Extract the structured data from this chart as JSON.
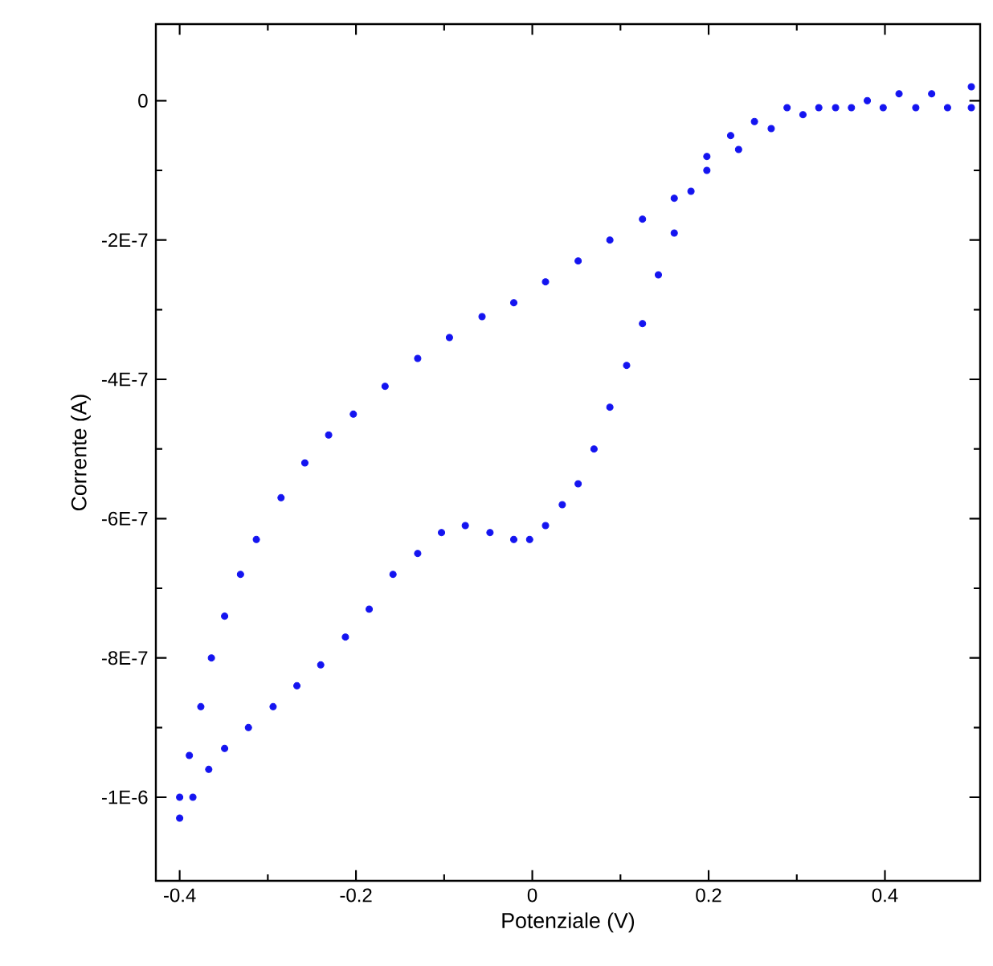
{
  "chart_data": {
    "type": "scatter",
    "xlabel": "Potenziale (V)",
    "ylabel": "Corrente (A)",
    "xlim": [
      -0.427,
      0.508
    ],
    "ylim": [
      -1.12e-06,
      1.1e-07
    ],
    "xticks": [
      -0.4,
      -0.2,
      0,
      0.2,
      0.4
    ],
    "yticks": [
      {
        "value": 0,
        "label": "0"
      },
      {
        "value": -2e-07,
        "label": "-2E-7"
      },
      {
        "value": -4e-07,
        "label": "-4E-7"
      },
      {
        "value": -6e-07,
        "label": "-6E-7"
      },
      {
        "value": -8e-07,
        "label": "-8E-7"
      },
      {
        "value": -1e-06,
        "label": "-1E-6"
      }
    ],
    "grid": false,
    "marker": "circle",
    "series": [
      {
        "color": "#1414f0",
        "x": [
          -0.4,
          -0.389,
          -0.376,
          -0.364,
          -0.349,
          -0.331,
          -0.313,
          -0.285,
          -0.258,
          -0.231,
          -0.203,
          -0.167,
          -0.13,
          -0.094,
          -0.057,
          -0.021,
          0.015,
          0.052,
          0.088,
          0.125,
          0.161,
          0.198,
          0.234,
          0.271,
          0.307,
          0.344,
          0.38,
          0.416,
          0.453,
          0.498,
          0.498,
          0.471,
          0.435,
          0.398,
          0.362,
          0.325,
          0.289,
          0.252,
          0.225,
          0.198,
          0.18,
          0.161,
          0.143,
          0.125,
          0.107,
          0.088,
          0.07,
          0.052,
          0.034,
          0.015,
          -0.003,
          -0.021,
          -0.048,
          -0.076,
          -0.103,
          -0.13,
          -0.158,
          -0.185,
          -0.212,
          -0.24,
          -0.267,
          -0.294,
          -0.322,
          -0.349,
          -0.367,
          -0.385,
          -0.4
        ],
        "values": [
          -1e-06,
          -9.4e-07,
          -8.7e-07,
          -8e-07,
          -7.4e-07,
          -6.8e-07,
          -6.3e-07,
          -5.7e-07,
          -5.2e-07,
          -4.8e-07,
          -4.5e-07,
          -4.1e-07,
          -3.7e-07,
          -3.4e-07,
          -3.1e-07,
          -2.9e-07,
          -2.6e-07,
          -2.3e-07,
          -2e-07,
          -1.7e-07,
          -1.4e-07,
          -1e-07,
          -7e-08,
          -4e-08,
          -2e-08,
          -1e-08,
          0,
          1e-08,
          1e-08,
          2e-08,
          -1e-08,
          -1e-08,
          -1e-08,
          -1e-08,
          -1e-08,
          -1e-08,
          -1e-08,
          -3e-08,
          -5e-08,
          -8e-08,
          -1.3e-07,
          -1.9e-07,
          -2.5e-07,
          -3.2e-07,
          -3.8e-07,
          -4.4e-07,
          -5e-07,
          -5.5e-07,
          -5.8e-07,
          -6.1e-07,
          -6.3e-07,
          -6.3e-07,
          -6.2e-07,
          -6.1e-07,
          -6.2e-07,
          -6.5e-07,
          -6.8e-07,
          -7.3e-07,
          -7.7e-07,
          -8.1e-07,
          -8.4e-07,
          -8.7e-07,
          -9e-07,
          -9.3e-07,
          -9.6e-07,
          -1e-06,
          -1.03e-06
        ]
      }
    ]
  }
}
